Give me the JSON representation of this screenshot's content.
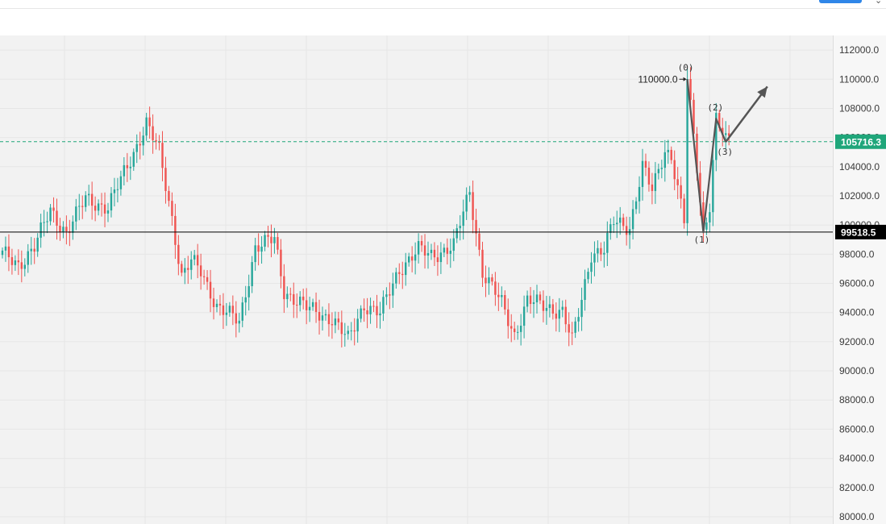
{
  "toolbar": {
    "more_icon": "chevron-icon"
  },
  "chart_data": {
    "type": "candlestick",
    "ylim": [
      79500,
      113000
    ],
    "y_ticks": [
      "112000.0",
      "110000.0",
      "108000.0",
      "106000.0",
      "104000.0",
      "102000.0",
      "100000.0",
      "98000.0",
      "96000.0",
      "94000.0",
      "92000.0",
      "90000.0",
      "88000.0",
      "86000.0",
      "84000.0",
      "82000.0",
      "80000.0"
    ],
    "y_tick_values": [
      112000,
      110000,
      108000,
      106000,
      104000,
      102000,
      100000,
      98000,
      96000,
      94000,
      92000,
      90000,
      88000,
      86000,
      84000,
      82000,
      80000
    ],
    "price_lines": [
      {
        "value": 105716.3,
        "label": "105716.3",
        "style": "dashed",
        "color": "#1fa67a"
      },
      {
        "value": 99518.5,
        "label": "99518.5",
        "style": "solid",
        "color": "#000000"
      }
    ],
    "peak_annotation": {
      "label": "110000.0",
      "value": 110000,
      "index": 214
    },
    "wave_labels": [
      {
        "label": "(0)",
        "value": 110000,
        "index": 214
      },
      {
        "label": "(1)",
        "value": 99500,
        "index": 219
      },
      {
        "label": "(2)",
        "value": 107300,
        "index": 223
      },
      {
        "label": "(3)",
        "value": 105700,
        "index": 226
      }
    ],
    "projection_target": {
      "value": 109500,
      "index": 239
    },
    "colors": {
      "up": "#26a69a",
      "down": "#ef5350",
      "background": "#f2f2f2"
    },
    "candle_count": 228,
    "path_points": [
      [
        0,
        98000
      ],
      [
        5,
        97300
      ],
      [
        10,
        98500
      ],
      [
        15,
        101000
      ],
      [
        20,
        99500
      ],
      [
        26,
        101800
      ],
      [
        33,
        101200
      ],
      [
        40,
        104500
      ],
      [
        45,
        107000
      ],
      [
        49,
        105000
      ],
      [
        53,
        100500
      ],
      [
        56,
        96500
      ],
      [
        59,
        97500
      ],
      [
        62,
        96800
      ],
      [
        67,
        94500
      ],
      [
        74,
        93300
      ],
      [
        79,
        98500
      ],
      [
        85,
        99000
      ],
      [
        88,
        95500
      ],
      [
        91,
        95000
      ],
      [
        95,
        94300
      ],
      [
        103,
        93600
      ],
      [
        108,
        92100
      ],
      [
        113,
        94600
      ],
      [
        118,
        93900
      ],
      [
        124,
        97000
      ],
      [
        130,
        98300
      ],
      [
        134,
        97900
      ],
      [
        141,
        98600
      ],
      [
        146,
        102300
      ],
      [
        150,
        96800
      ],
      [
        156,
        94600
      ],
      [
        160,
        92500
      ],
      [
        164,
        94800
      ],
      [
        170,
        94400
      ],
      [
        175,
        94100
      ],
      [
        178,
        92000
      ],
      [
        181,
        94900
      ],
      [
        184,
        98100
      ],
      [
        188,
        98300
      ],
      [
        191,
        100200
      ],
      [
        196,
        99900
      ],
      [
        200,
        104000
      ],
      [
        203,
        102300
      ],
      [
        207,
        105200
      ],
      [
        209,
        104800
      ],
      [
        213,
        100200
      ],
      [
        214,
        110000
      ],
      [
        217,
        104000
      ],
      [
        219,
        99500
      ],
      [
        221,
        101500
      ],
      [
        223,
        107300
      ],
      [
        226,
        105700
      ]
    ]
  }
}
